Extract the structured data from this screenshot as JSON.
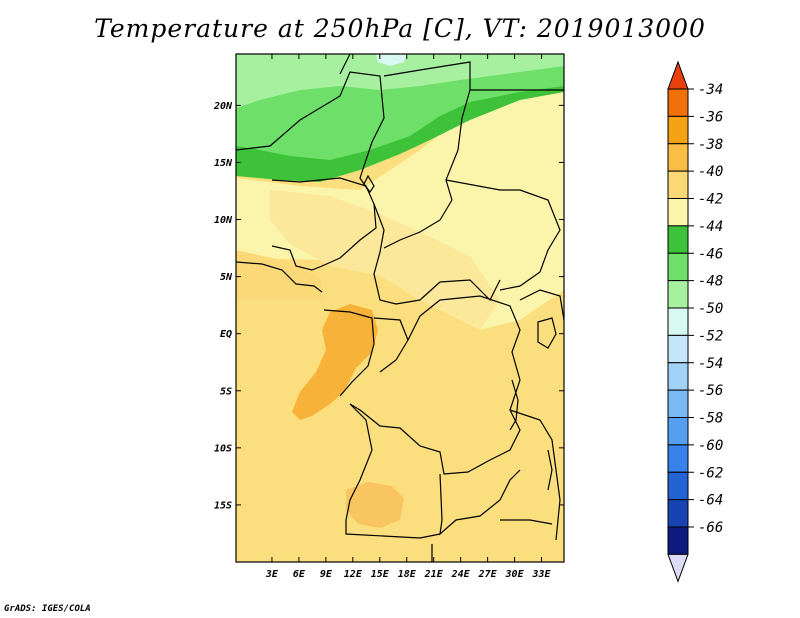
{
  "title": "Temperature at 250hPa [C], VT: 2019013000",
  "credit": "GrADS: IGES/COLA",
  "map": {
    "lon_range": [
      -1,
      35.5
    ],
    "lat_range": [
      -20,
      24.5
    ],
    "lat_ticks": [
      "20N",
      "15N",
      "10N",
      "5N",
      "EQ",
      "5S",
      "10S",
      "15S"
    ],
    "lon_ticks": [
      "3E",
      "6E",
      "9E",
      "12E",
      "15E",
      "18E",
      "21E",
      "24E",
      "27E",
      "30E",
      "33E"
    ]
  },
  "colorbar": {
    "levels": [
      "-34",
      "-36",
      "-38",
      "-40",
      "-42",
      "-44",
      "-46",
      "-48",
      "-50",
      "-52",
      "-54",
      "-56",
      "-58",
      "-60",
      "-62",
      "-64",
      "-66"
    ],
    "colors": [
      "#e8400e",
      "#f0700a",
      "#f5a216",
      "#f9be45",
      "#fad974",
      "#fbf4ab",
      "#3dc23a",
      "#6ee06a",
      "#a7f0a0",
      "#d8f8f2",
      "#c4e6fb",
      "#a2d2f8",
      "#7cbaf3",
      "#559ef0",
      "#3882ea",
      "#2463d4",
      "#1744b2",
      "#0d1a7e",
      "#dcdcf6"
    ]
  }
}
